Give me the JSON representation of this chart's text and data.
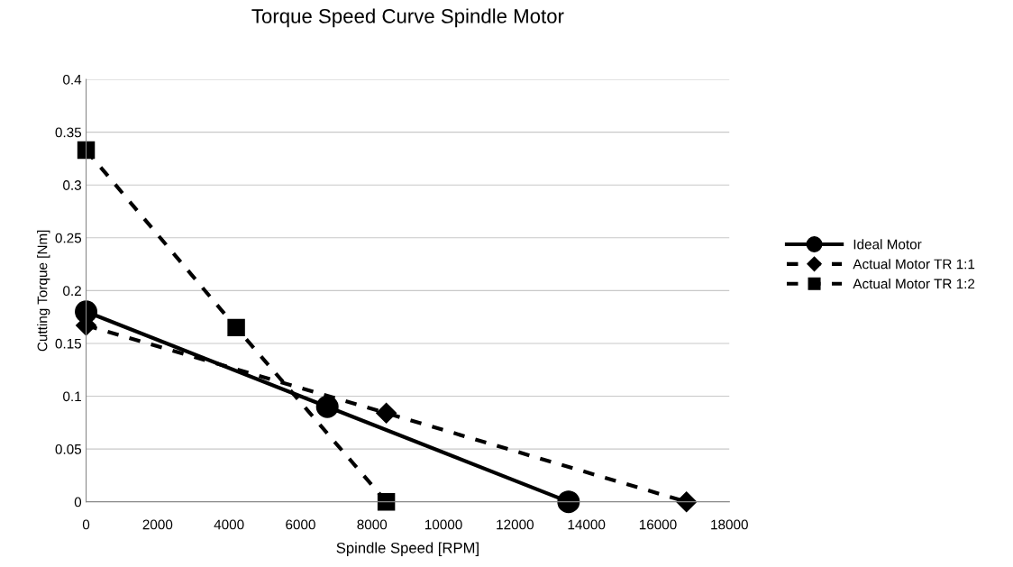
{
  "chart_data": {
    "type": "line",
    "title": "Torque Speed Curve Spindle Motor",
    "xlabel": "Spindle Speed [RPM]",
    "ylabel": "Cutting Torque [Nm]",
    "xlim": [
      0,
      18000
    ],
    "xticks": [
      0,
      2000,
      4000,
      6000,
      8000,
      10000,
      12000,
      14000,
      16000,
      18000
    ],
    "ylim": [
      0,
      0.4
    ],
    "yticks": [
      0,
      0.05,
      0.1,
      0.15,
      0.2,
      0.25,
      0.3,
      0.35,
      0.4
    ],
    "grid": "y",
    "legend": "right",
    "series": [
      {
        "name": "Ideal Motor",
        "color": "#000000",
        "marker": "circle",
        "line_style": "solid",
        "x": [
          0,
          6750,
          13500
        ],
        "values": [
          0.18,
          0.09,
          0
        ]
      },
      {
        "name": "Actual Motor TR 1:1",
        "color": "#000000",
        "marker": "diamond",
        "line_style": "dashed",
        "x": [
          0,
          8400,
          16800
        ],
        "values": [
          0.167,
          0.084,
          0
        ]
      },
      {
        "name": "Actual Motor TR 1:2",
        "color": "#000000",
        "marker": "square",
        "line_style": "dashed",
        "x": [
          0,
          4200,
          8400
        ],
        "values": [
          0.333,
          0.165,
          0
        ]
      }
    ]
  }
}
